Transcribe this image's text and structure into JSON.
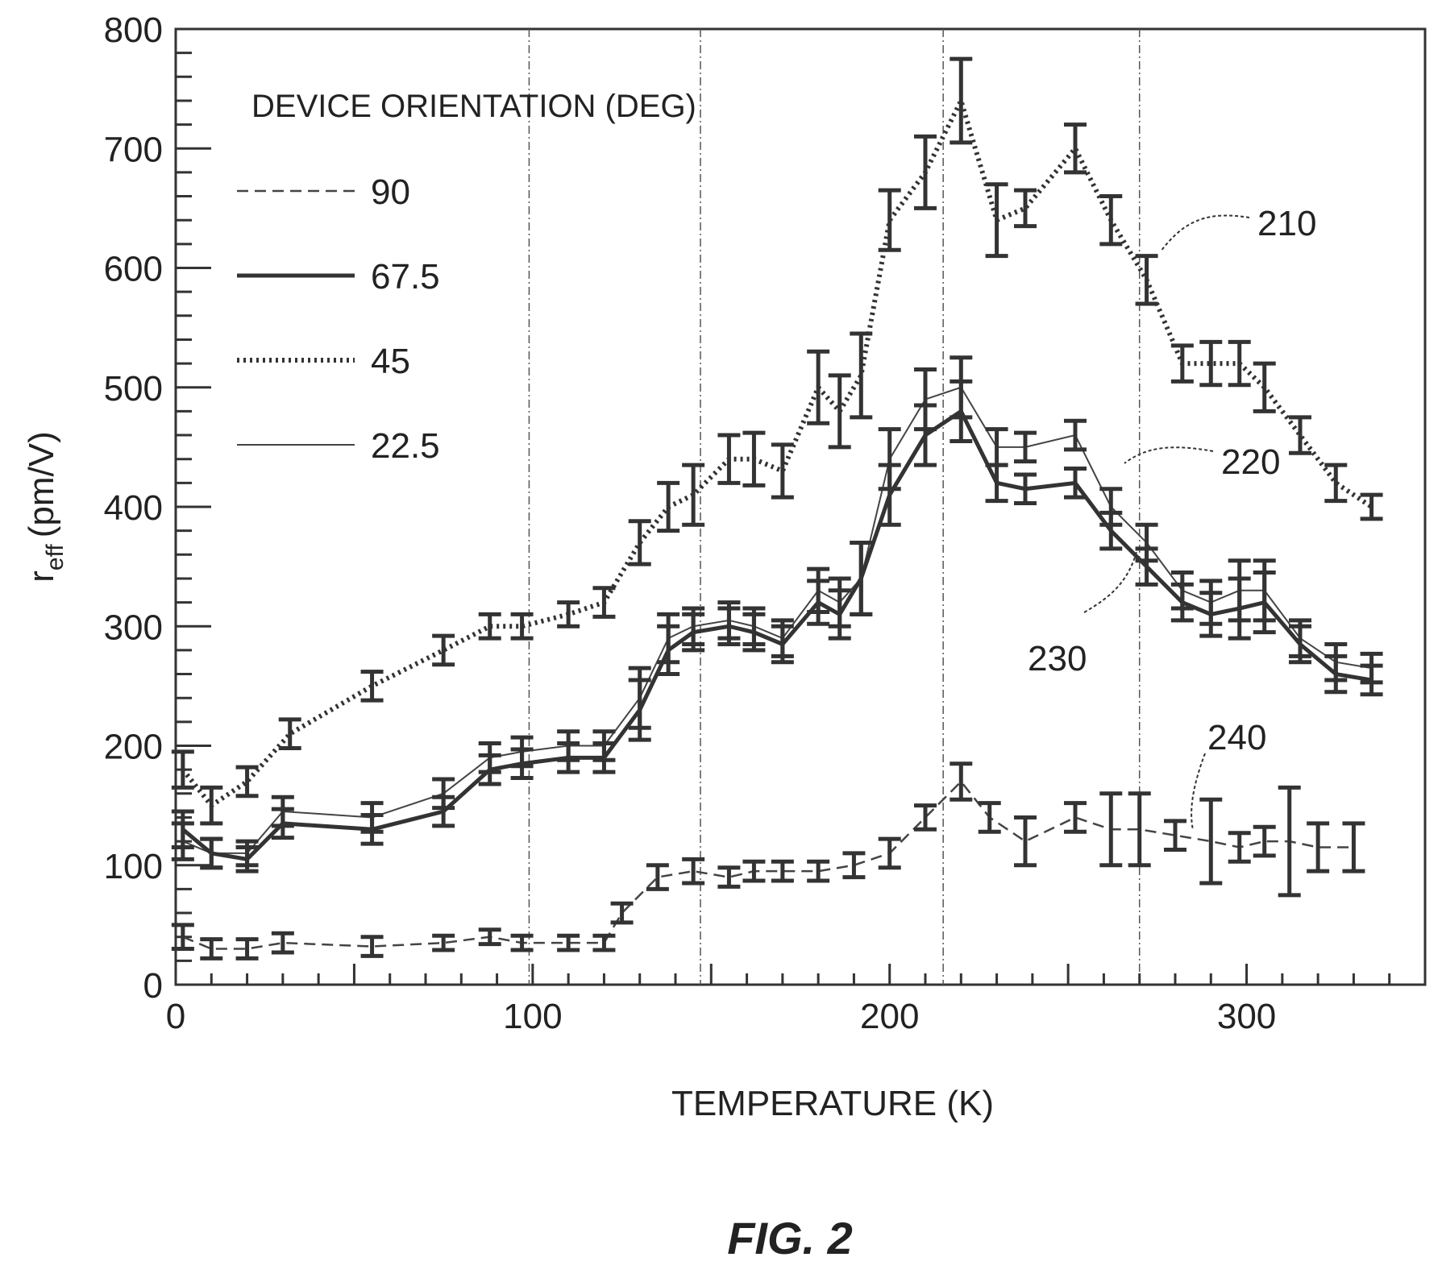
{
  "chart_data": {
    "type": "line",
    "title": "",
    "xlabel": "TEMPERATURE (K)",
    "ylabel_main": "r",
    "ylabel_sub": "eff",
    "ylabel_unit": "(pm/V)",
    "xlim": [
      0,
      350
    ],
    "ylim": [
      0,
      800
    ],
    "x_ticks": [
      "0",
      "100",
      "200",
      "300"
    ],
    "x_tick_values": [
      0,
      100,
      200,
      300
    ],
    "y_ticks": [
      "0",
      "100",
      "200",
      "300",
      "400",
      "500",
      "600",
      "700",
      "800"
    ],
    "y_tick_values": [
      0,
      100,
      200,
      300,
      400,
      500,
      600,
      700,
      800
    ],
    "grid": false,
    "reference_lines_x": [
      99,
      147,
      215,
      270
    ],
    "legend": {
      "title": "DEVICE ORIENTATION (DEG)",
      "placement": "top-left",
      "entries": [
        {
          "label": "90",
          "style": "dashed"
        },
        {
          "label": "67.5",
          "style": "solid-bold"
        },
        {
          "label": "45",
          "style": "dotted-bold"
        },
        {
          "label": "22.5",
          "style": "solid-thin"
        }
      ]
    },
    "series": [
      {
        "label": "45",
        "callout": "210",
        "style": "dotted-bold",
        "x": [
          2,
          10,
          20,
          32,
          55,
          75,
          88,
          97,
          110,
          120,
          130,
          138,
          145,
          155,
          162,
          170,
          180,
          186,
          192,
          200,
          210,
          220,
          230,
          238,
          252,
          262,
          272,
          282,
          290,
          298,
          305,
          315,
          325,
          335
        ],
        "y": [
          180,
          150,
          170,
          210,
          250,
          280,
          300,
          300,
          310,
          320,
          370,
          400,
          410,
          440,
          440,
          430,
          500,
          480,
          510,
          640,
          680,
          740,
          640,
          650,
          700,
          640,
          590,
          520,
          520,
          520,
          500,
          460,
          420,
          400
        ],
        "err": [
          15,
          15,
          12,
          12,
          12,
          12,
          10,
          10,
          10,
          12,
          18,
          20,
          25,
          20,
          22,
          22,
          30,
          30,
          35,
          25,
          30,
          35,
          30,
          15,
          20,
          20,
          20,
          15,
          18,
          18,
          20,
          15,
          15,
          10
        ]
      },
      {
        "label": "22.5",
        "callout": "220",
        "style": "solid-thin",
        "x": [
          2,
          10,
          20,
          30,
          55,
          75,
          88,
          97,
          110,
          120,
          130,
          138,
          145,
          155,
          162,
          170,
          180,
          186,
          192,
          200,
          210,
          220,
          230,
          238,
          252,
          262,
          272,
          282,
          290,
          298,
          305,
          315,
          325,
          335
        ],
        "y": [
          120,
          110,
          110,
          145,
          140,
          160,
          190,
          195,
          200,
          200,
          240,
          290,
          300,
          305,
          300,
          290,
          330,
          320,
          340,
          440,
          490,
          500,
          450,
          450,
          460,
          400,
          370,
          330,
          320,
          330,
          330,
          290,
          270,
          265
        ],
        "err": [
          15,
          12,
          10,
          12,
          12,
          12,
          12,
          12,
          12,
          12,
          25,
          20,
          15,
          15,
          15,
          15,
          18,
          20,
          30,
          25,
          25,
          25,
          15,
          12,
          12,
          15,
          15,
          15,
          18,
          25,
          25,
          15,
          15,
          12
        ]
      },
      {
        "label": "67.5",
        "callout": "230",
        "style": "solid-bold",
        "x": [
          2,
          10,
          20,
          30,
          55,
          75,
          88,
          97,
          110,
          120,
          130,
          138,
          145,
          155,
          162,
          170,
          180,
          186,
          192,
          200,
          210,
          220,
          230,
          238,
          252,
          262,
          272,
          282,
          290,
          298,
          305,
          315,
          325,
          335
        ],
        "y": [
          130,
          110,
          105,
          135,
          130,
          145,
          180,
          185,
          190,
          190,
          230,
          280,
          295,
          300,
          295,
          285,
          320,
          310,
          340,
          410,
          460,
          480,
          420,
          415,
          420,
          380,
          350,
          320,
          310,
          315,
          320,
          285,
          260,
          255
        ],
        "err": [
          15,
          12,
          10,
          12,
          12,
          12,
          12,
          12,
          12,
          12,
          25,
          20,
          15,
          15,
          15,
          15,
          18,
          20,
          30,
          25,
          25,
          25,
          15,
          12,
          12,
          15,
          15,
          15,
          18,
          25,
          25,
          15,
          15,
          12
        ]
      },
      {
        "label": "90",
        "callout": "240",
        "style": "dashed",
        "x": [
          2,
          10,
          20,
          30,
          55,
          75,
          88,
          97,
          110,
          120,
          125,
          135,
          145,
          155,
          162,
          170,
          180,
          190,
          200,
          210,
          220,
          228,
          238,
          252,
          262,
          270,
          280,
          290,
          298,
          305,
          312,
          320,
          330
        ],
        "y": [
          40,
          30,
          30,
          35,
          32,
          35,
          40,
          35,
          35,
          35,
          60,
          90,
          95,
          90,
          95,
          95,
          95,
          100,
          110,
          140,
          170,
          140,
          120,
          140,
          130,
          130,
          125,
          120,
          115,
          120,
          120,
          115,
          115
        ],
        "err": [
          10,
          8,
          8,
          8,
          8,
          6,
          6,
          6,
          6,
          6,
          8,
          10,
          10,
          8,
          8,
          8,
          8,
          10,
          12,
          10,
          15,
          12,
          20,
          12,
          30,
          30,
          12,
          35,
          12,
          12,
          45,
          20,
          20
        ]
      }
    ],
    "callouts": [
      "210",
      "220",
      "230",
      "240"
    ],
    "figure_label": "FIG. 2"
  }
}
